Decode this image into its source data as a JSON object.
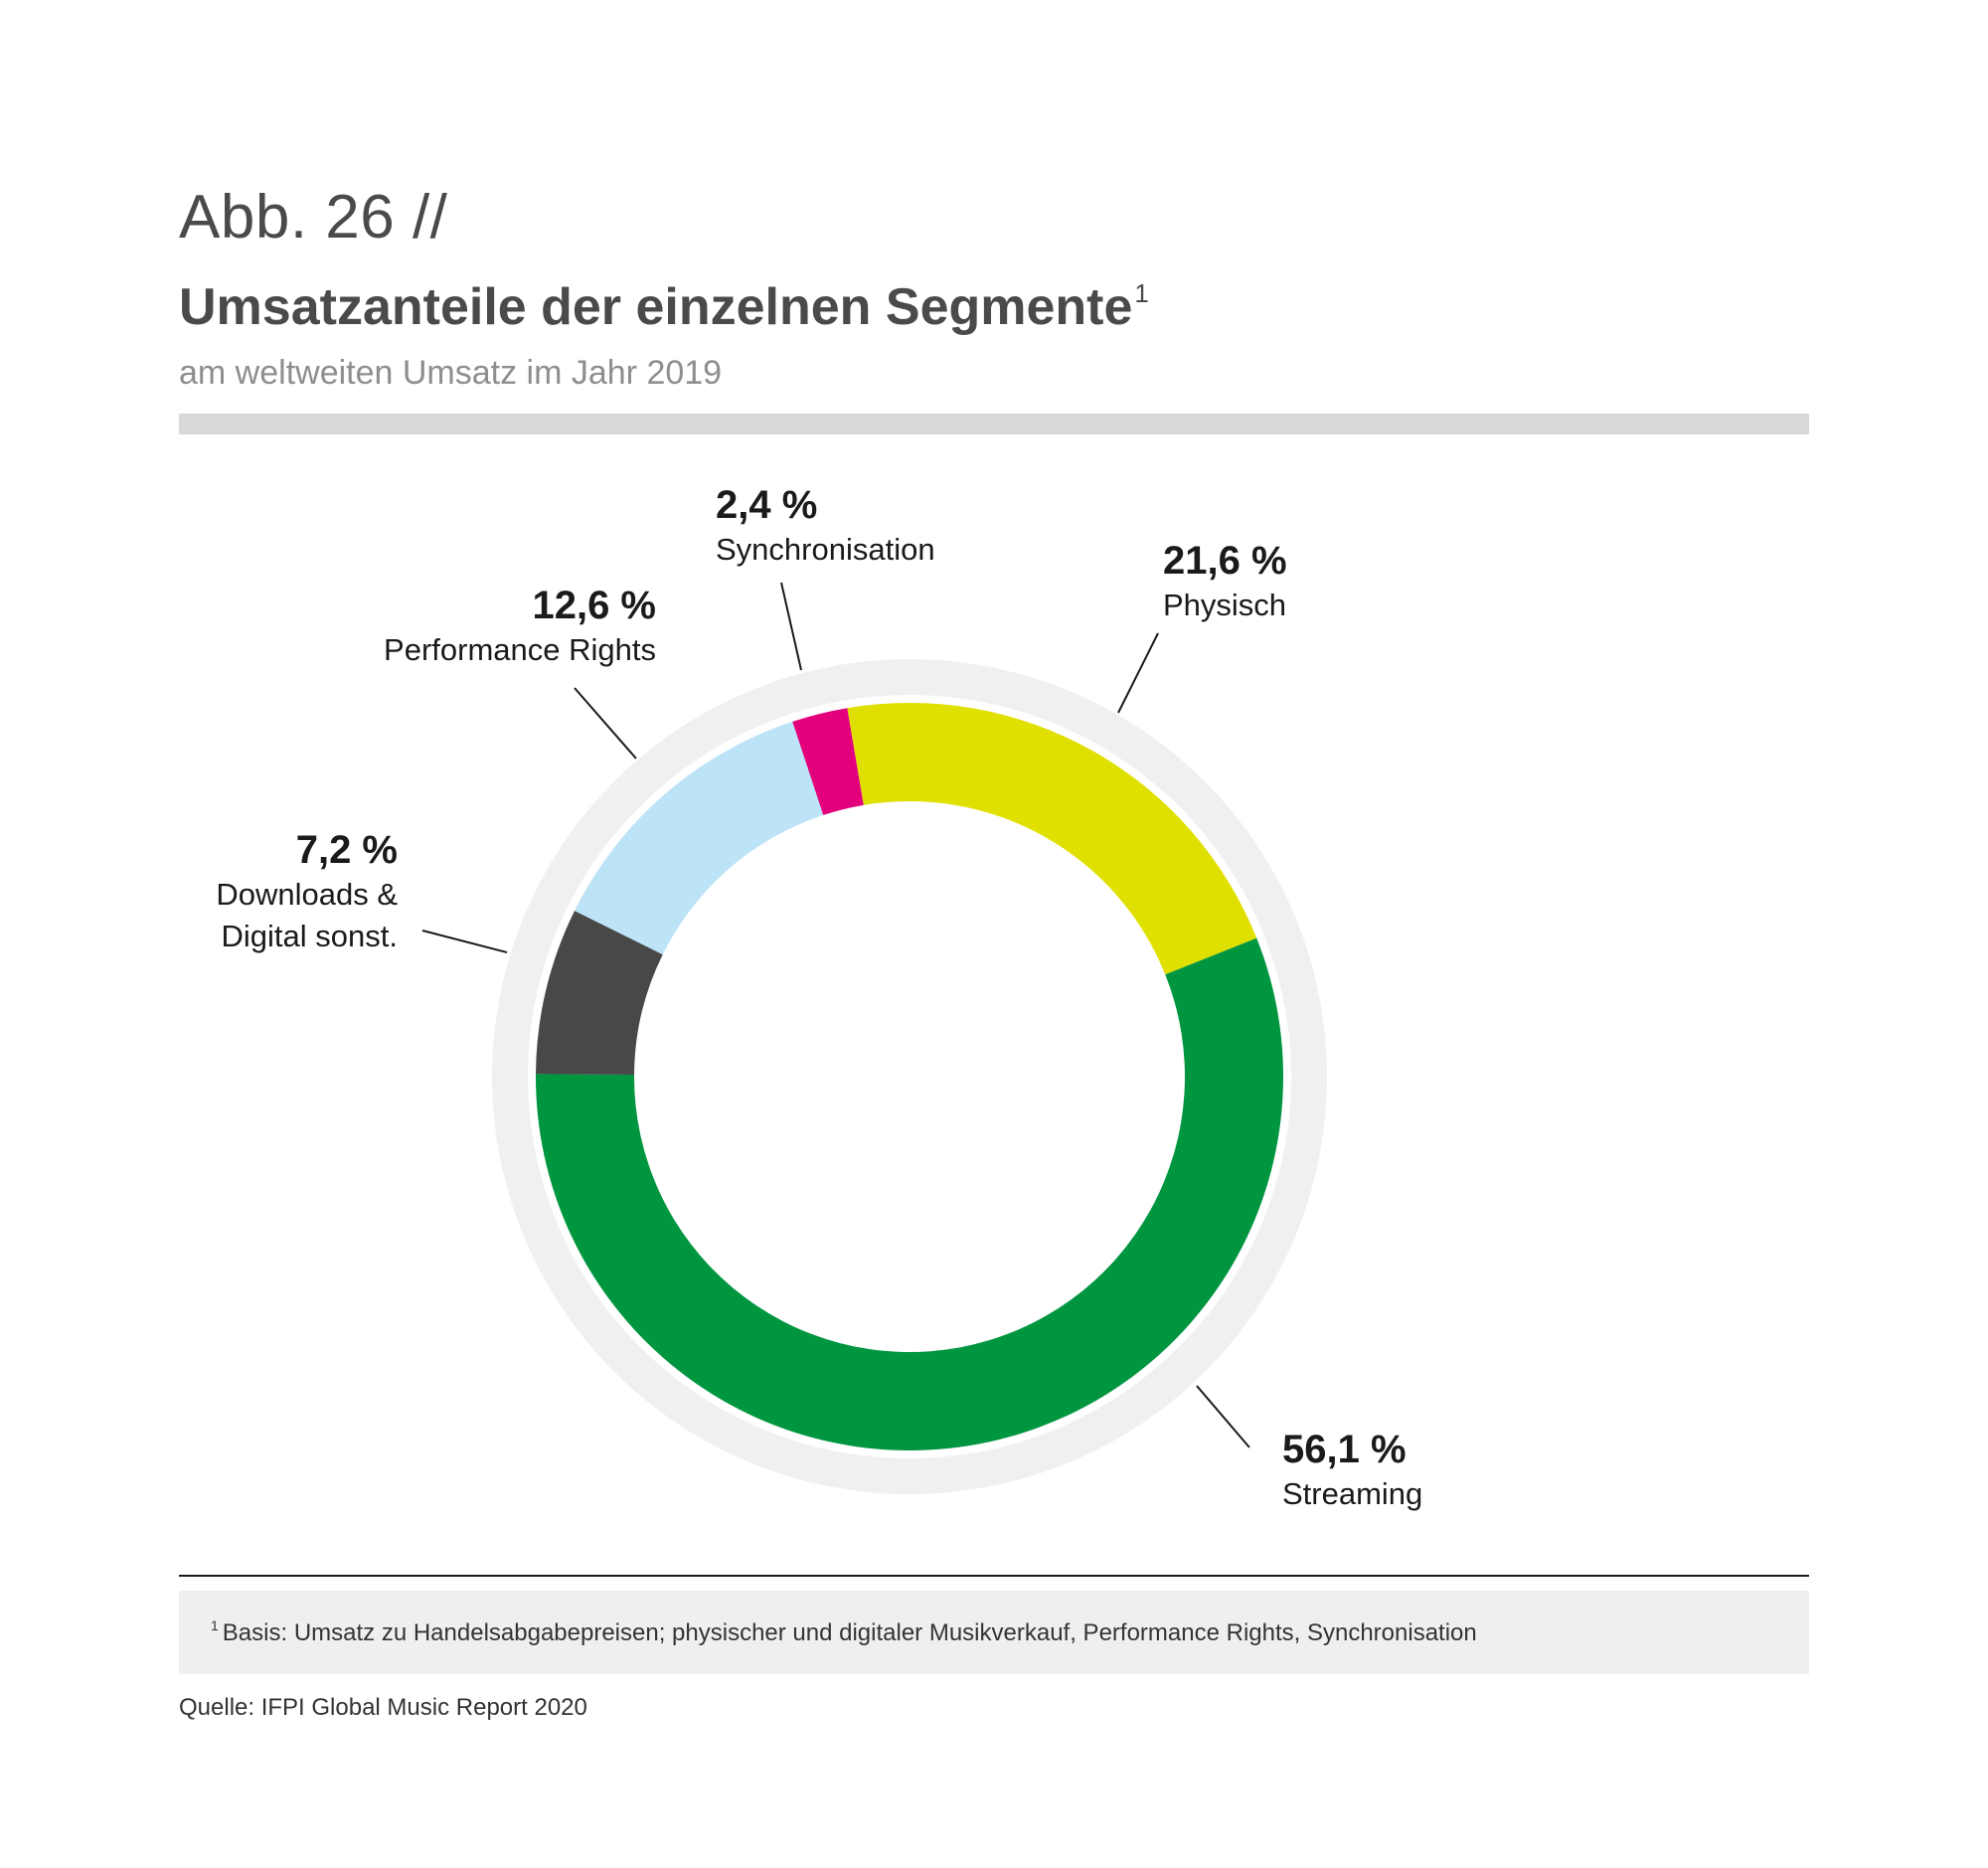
{
  "header": {
    "figure_label": "Abb. 26 //",
    "title": "Umsatzanteile der einzelnen Segmente",
    "title_footnote_mark": "1",
    "subtitle": "am weltweiten Umsatz im Jahr 2019"
  },
  "chart_data": {
    "type": "pie",
    "variant": "donut",
    "title": "Umsatzanteile der einzelnen Segmente",
    "subtitle": "am weltweiten Umsatz im Jahr 2019",
    "unit": "%",
    "slices": [
      {
        "label": "Physisch",
        "value": 21.6,
        "value_label": "21,6 %",
        "color": "#e0e000"
      },
      {
        "label": "Streaming",
        "value": 56.1,
        "value_label": "56,1 %",
        "color": "#009640"
      },
      {
        "label": "Downloads & Digital sonst.",
        "value": 7.2,
        "value_label": "7,2 %",
        "color": "#484848"
      },
      {
        "label": "Performance Rights",
        "value": 12.6,
        "value_label": "12,6 %",
        "color": "#bde3f7"
      },
      {
        "label": "Synchronisation",
        "value": 2.4,
        "value_label": "2,4 %",
        "color": "#e3007d"
      }
    ],
    "start_angle_deg": -9.6,
    "direction": "clockwise",
    "outer_ring_color": "#f0f0f0"
  },
  "labels": {
    "physisch": {
      "pct": "21,6 %",
      "name": "Physisch"
    },
    "streaming": {
      "pct": "56,1 %",
      "name": "Streaming"
    },
    "downloads": {
      "pct": "7,2 %",
      "name_line1": "Downloads &",
      "name_line2": "Digital sonst."
    },
    "performance": {
      "pct": "12,6 %",
      "name": "Performance Rights"
    },
    "synchronisation": {
      "pct": "2,4 %",
      "name": "Synchronisation"
    }
  },
  "footer": {
    "footnote_mark": "1",
    "footnote": "Basis: Umsatz zu Handelsabgabepreisen; physischer und digitaler Musikverkauf, Performance Rights, Synchronisation",
    "source": "Quelle: IFPI Global Music Report 2020"
  }
}
